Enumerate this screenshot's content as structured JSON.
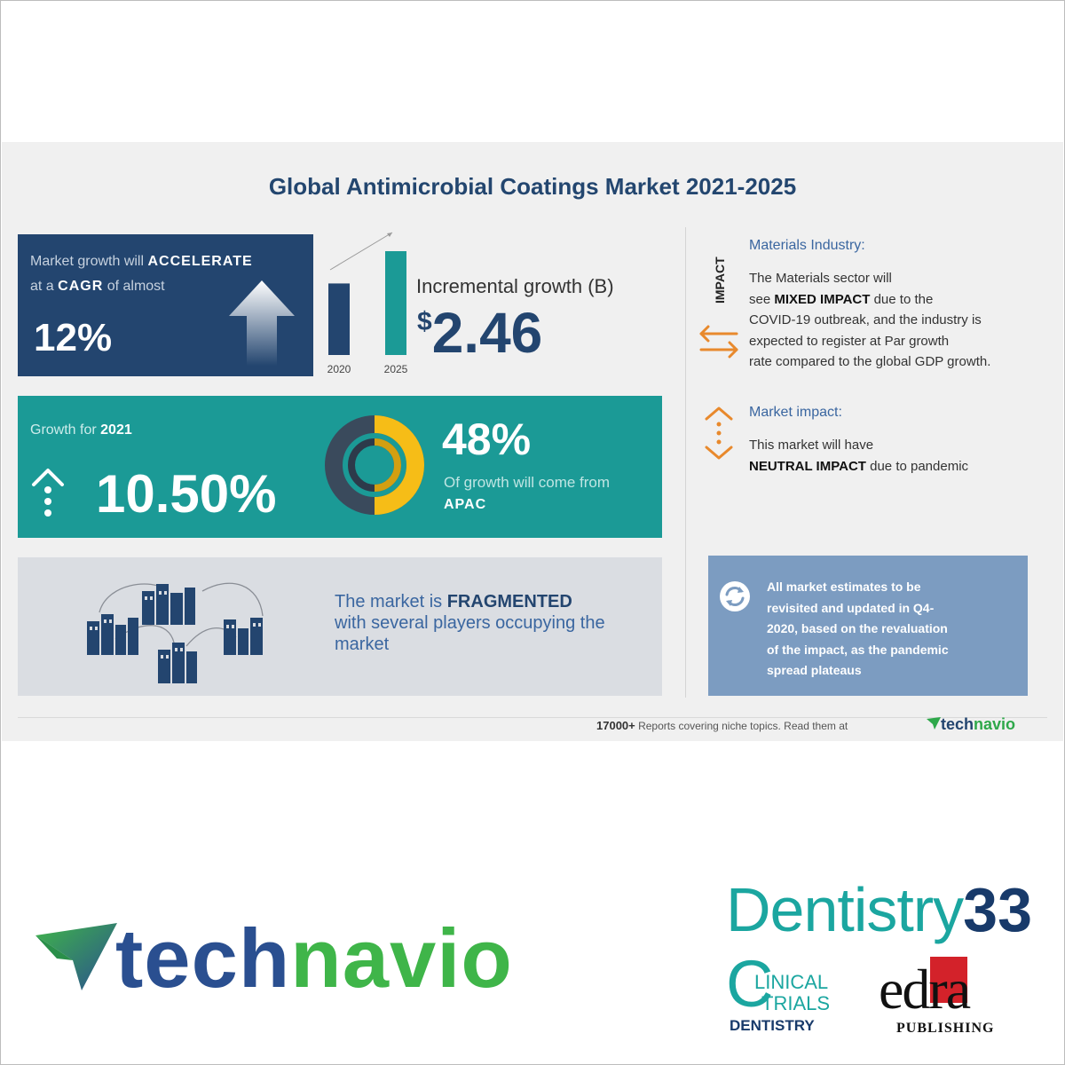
{
  "infographic": {
    "title": "Global Antimicrobial Coatings Market 2021-2025",
    "cagr_panel": {
      "line1_prefix": "Market growth will",
      "line1_emph": "ACCELERATE",
      "line2_prefix": "at a",
      "line2_emph": "CAGR",
      "line2_suffix": "of almost",
      "value": "12%"
    },
    "incremental": {
      "bar_years": [
        "2020",
        "2025"
      ],
      "bar_levels": [
        0.62,
        0.9
      ],
      "label": "Incremental growth (B)",
      "currency": "$",
      "value": "2.46"
    },
    "growth_panel": {
      "label_prefix": "Growth for",
      "label_year": "2021",
      "value": "10.50%",
      "region_share": "48%",
      "region_note": "Of growth will come from",
      "region": "APAC"
    },
    "fragmented_panel": {
      "line1_prefix": "The market is",
      "line1_emph": "FRAGMENTED",
      "line2": "with several players occupying the",
      "line3": "market"
    },
    "impact": {
      "tag": "IMPACT",
      "materials_title": "Materials Industry:",
      "materials_l1": "The Materials sector will",
      "materials_l2_prefix": "see",
      "materials_l2_emph": "MIXED IMPACT",
      "materials_l2_suffix": "due to the",
      "materials_l3": "COVID-19 outbreak, and the industry is",
      "materials_l4": "expected to register at Par growth",
      "materials_l5": "rate compared to the global GDP growth.",
      "market_title": "Market impact:",
      "market_l1": "This market will have",
      "market_l2_emph": "NEUTRAL IMPACT",
      "market_l2_suffix": "due to pandemic"
    },
    "note": {
      "l1": "All market estimates to be",
      "l2": "revisited and updated in Q4-",
      "l3": "2020, based on the revaluation",
      "l4": "of the impact, as the pandemic",
      "l5": "spread plateaus"
    },
    "footer": {
      "count": "17000+",
      "text": "Reports covering niche topics. Read them at",
      "logo_a": "tech",
      "logo_b": "navio"
    }
  },
  "logos": {
    "technavio_a": "tech",
    "technavio_b": "navio",
    "dentistry_word": "Dentistry",
    "dentistry_num": "33",
    "clinical_l1": "LINICAL",
    "clinical_l2": "TRIALS",
    "clinical_l3": "DENTISTRY",
    "edra_word": "edra",
    "edra_sub": "PUBLISHING"
  },
  "colors": {
    "navy": "#23456f",
    "teal": "#1b9a96",
    "yellow": "#f6bd17",
    "orange": "#e8892c",
    "green": "#3fb549"
  }
}
